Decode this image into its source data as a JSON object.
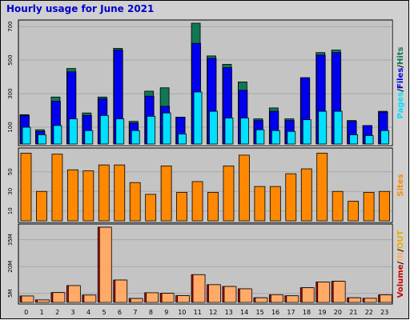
{
  "title": "Hourly usage for June 2021",
  "colors": {
    "title": "#0000cc",
    "panel_bg": "#c4c4c4",
    "frame_bg": "#d0d0d0",
    "grid": "#a8a8a8",
    "hits": "#117755",
    "files": "#0000ee",
    "pages": "#00e0ff",
    "sites": "#ff8800",
    "volume": "#cc0000",
    "in": "#ffaa66",
    "out": "#eeaa00"
  },
  "labels": {
    "pages": "Pages",
    "files": "Files",
    "hits": "Hits",
    "sites": "Sites",
    "volume": "Volume",
    "in": "IN",
    "out": "OUT",
    "sep": "/"
  },
  "chart_data": [
    {
      "type": "bar",
      "categories": [
        "0",
        "1",
        "2",
        "3",
        "4",
        "5",
        "6",
        "7",
        "8",
        "9",
        "10",
        "11",
        "12",
        "13",
        "14",
        "15",
        "16",
        "17",
        "18",
        "19",
        "20",
        "21",
        "22",
        "23"
      ],
      "ylim": [
        0,
        720
      ],
      "yticks": [
        "100",
        "300",
        "500",
        "700"
      ],
      "ytick_values": [
        100,
        300,
        500,
        700
      ],
      "series": [
        {
          "name": "Hits",
          "values": [
            175,
            85,
            280,
            450,
            185,
            280,
            570,
            135,
            315,
            335,
            160,
            720,
            525,
            475,
            370,
            150,
            215,
            150,
            395,
            545,
            560,
            140,
            110,
            195
          ]
        },
        {
          "name": "Files",
          "values": [
            170,
            75,
            255,
            430,
            170,
            270,
            560,
            125,
            285,
            225,
            160,
            600,
            510,
            455,
            320,
            140,
            195,
            140,
            395,
            530,
            545,
            135,
            110,
            190
          ]
        },
        {
          "name": "Pages",
          "values": [
            100,
            55,
            110,
            150,
            80,
            170,
            150,
            80,
            165,
            185,
            60,
            310,
            195,
            155,
            155,
            85,
            80,
            75,
            145,
            195,
            195,
            55,
            50,
            80
          ]
        }
      ]
    },
    {
      "type": "bar",
      "categories": [
        "0",
        "1",
        "2",
        "3",
        "4",
        "5",
        "6",
        "7",
        "8",
        "9",
        "10",
        "11",
        "12",
        "13",
        "14",
        "15",
        "16",
        "17",
        "18",
        "19",
        "20",
        "21",
        "22",
        "23"
      ],
      "ylim": [
        0,
        71
      ],
      "yticks": [
        "10",
        "30",
        "50"
      ],
      "ytick_values": [
        10,
        30,
        50
      ],
      "series": [
        {
          "name": "Sites",
          "values": [
            69,
            30,
            68,
            52,
            51,
            57,
            57,
            39,
            27,
            56,
            29,
            40,
            29,
            56,
            67,
            35,
            35,
            48,
            53,
            69,
            30,
            20,
            29,
            30
          ]
        }
      ]
    },
    {
      "type": "bar",
      "categories": [
        "0",
        "1",
        "2",
        "3",
        "4",
        "5",
        "6",
        "7",
        "8",
        "9",
        "10",
        "11",
        "12",
        "13",
        "14",
        "15",
        "16",
        "17",
        "18",
        "19",
        "20",
        "21",
        "22",
        "23"
      ],
      "ylim": [
        0,
        42
      ],
      "yticks": [
        "5M",
        "20M",
        "35M"
      ],
      "ytick_values": [
        5,
        20,
        35
      ],
      "series": [
        {
          "name": "Volume",
          "values": [
            3.6,
            1.4,
            5.5,
            9.4,
            4.1,
            42,
            12.5,
            2.2,
            5.4,
            5.1,
            3.8,
            15.5,
            9.9,
            8.9,
            7.6,
            2.6,
            4.3,
            3.7,
            8.2,
            11.4,
            11.8,
            2.6,
            2.3,
            4.2
          ]
        },
        {
          "name": "IN",
          "values": [
            3.6,
            1.4,
            5.5,
            9.4,
            4.1,
            42,
            12.5,
            2.2,
            5.4,
            5.1,
            3.8,
            15.5,
            9.9,
            8.9,
            7.6,
            2.6,
            4.3,
            3.7,
            8.2,
            11.4,
            11.8,
            2.6,
            2.3,
            4.2
          ]
        }
      ]
    }
  ]
}
